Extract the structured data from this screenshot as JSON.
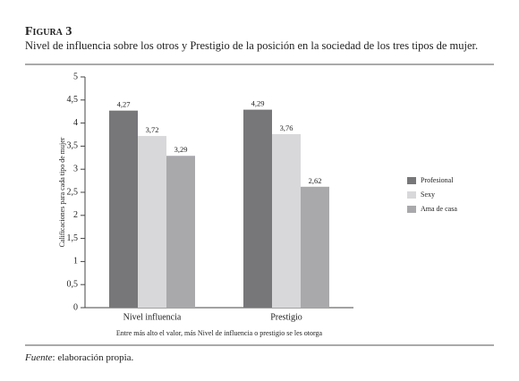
{
  "chart_data": {
    "type": "bar",
    "figure_label": "Figura 3",
    "title": "Nivel de influencia sobre los otros y Prestigio de la posición en la sociedad de los tres tipos de mujer.",
    "y_label": "Calificaciones para cada tipo de mujer",
    "x_label": "Entre más alto el valor, más Nivel de influencia o prestigio se les otorga",
    "categories": [
      "Nivel influencia",
      "Prestigio"
    ],
    "series": [
      {
        "name": "Profesional",
        "color": "#77777a",
        "values": [
          4.27,
          4.29
        ],
        "value_labels": [
          "4,27",
          "4,29"
        ]
      },
      {
        "name": "Sexy",
        "color": "#d8d8da",
        "values": [
          3.72,
          3.76
        ],
        "value_labels": [
          "3,72",
          "3,76"
        ]
      },
      {
        "name": "Ama de casa",
        "color": "#a9a9ac",
        "values": [
          3.29,
          2.62
        ],
        "value_labels": [
          "3,29",
          "2,62"
        ]
      }
    ],
    "ylim": [
      0,
      5
    ],
    "yticks": [
      0,
      {
        "value": 0.5,
        "label": "0,5"
      },
      1,
      {
        "value": 1.5,
        "label": "1,5"
      },
      2,
      {
        "value": 2.5,
        "label": "2,5"
      },
      3,
      {
        "value": 3.5,
        "label": "3,5"
      },
      4,
      {
        "value": 4.5,
        "label": "4,5"
      },
      5
    ],
    "legend": "right",
    "source_label": "Fuente",
    "source_text": ": elaboración propia."
  }
}
